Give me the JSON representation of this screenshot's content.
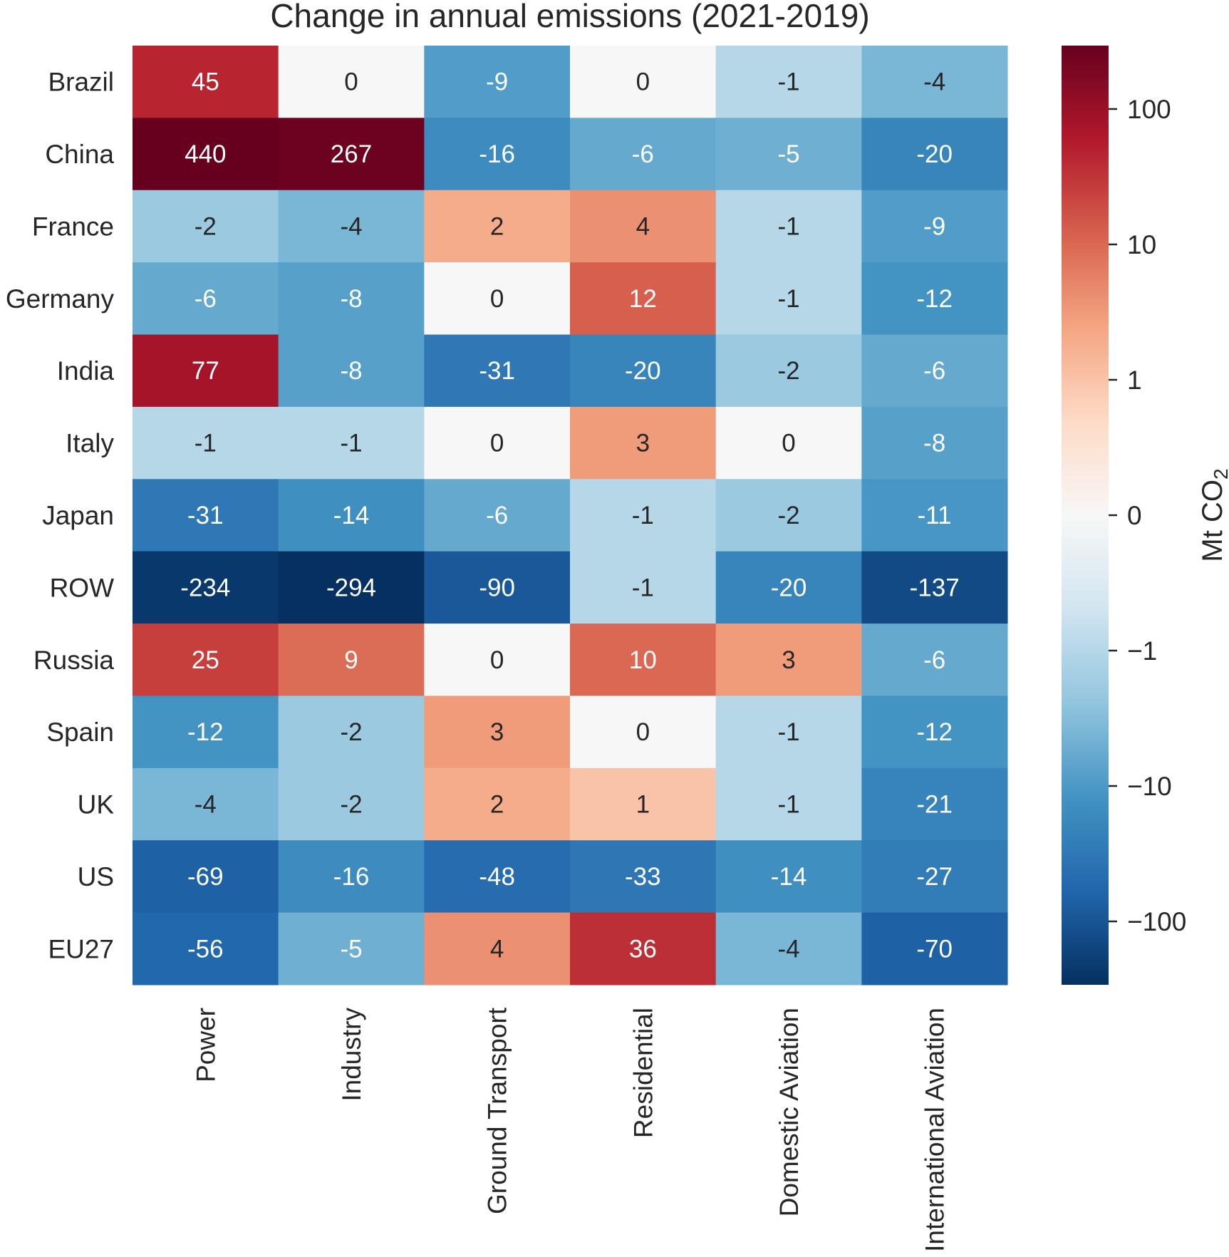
{
  "chart_data": {
    "type": "heatmap",
    "title": "Change in annual emissions (2021-2019)",
    "xlabel": "",
    "ylabel": "",
    "rows": [
      "Brazil",
      "China",
      "France",
      "Germany",
      "India",
      "Italy",
      "Japan",
      "ROW",
      "Russia",
      "Spain",
      "UK",
      "US",
      "EU27"
    ],
    "columns": [
      "Power",
      "Industry",
      "Ground Transport",
      "Residential",
      "Domestic Aviation",
      "International Aviation"
    ],
    "values": [
      [
        45,
        0,
        -9,
        0,
        -1,
        -4
      ],
      [
        440,
        267,
        -16,
        -6,
        -5,
        -20
      ],
      [
        -2,
        -4,
        2,
        4,
        -1,
        -9
      ],
      [
        -6,
        -8,
        0,
        12,
        -1,
        -12
      ],
      [
        77,
        -8,
        -31,
        -20,
        -2,
        -6
      ],
      [
        -1,
        -1,
        0,
        3,
        0,
        -8
      ],
      [
        -31,
        -14,
        -6,
        -1,
        -2,
        -11
      ],
      [
        -234,
        -294,
        -90,
        -1,
        -20,
        -137
      ],
      [
        25,
        9,
        0,
        10,
        3,
        -6
      ],
      [
        -12,
        -2,
        3,
        0,
        -1,
        -12
      ],
      [
        -4,
        -2,
        2,
        1,
        -1,
        -21
      ],
      [
        -69,
        -16,
        -48,
        -33,
        -14,
        -27
      ],
      [
        -56,
        -5,
        4,
        36,
        -4,
        -70
      ]
    ],
    "colorbar": {
      "label": "Mt CO",
      "label_subscript": "2",
      "scale": "symlog",
      "linthresh": 1,
      "range": [
        -294,
        294
      ],
      "ticks": [
        100,
        10,
        1,
        0,
        -1,
        -10,
        -100
      ],
      "tick_labels": [
        "100",
        "10",
        "1",
        "0",
        "−1",
        "−10",
        "−100"
      ],
      "colormap": "RdBu_r"
    },
    "annotation_text_colors": {
      "dark": "#262626",
      "light": "#ffffff"
    }
  }
}
